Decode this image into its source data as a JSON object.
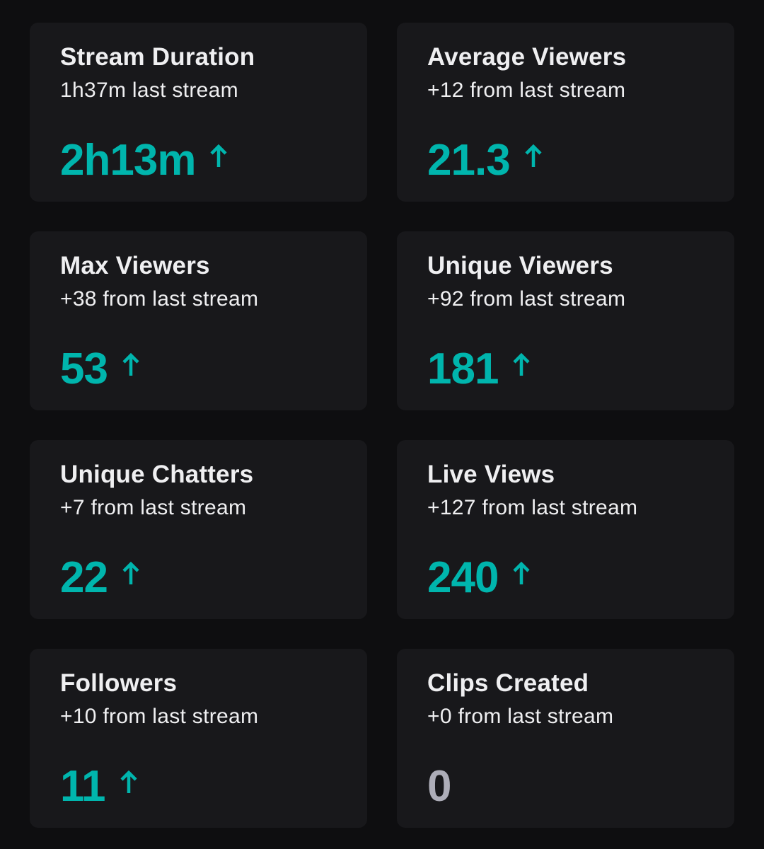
{
  "theme": {
    "accent": "#00b5ad",
    "neutral": "#adadb8",
    "card_bg": "#18181b",
    "page_bg": "#0e0e10"
  },
  "stats": [
    {
      "title": "Stream Duration",
      "subtitle": "1h37m last stream",
      "value": "2h13m",
      "trend": "up",
      "icon": "arrow-up-icon"
    },
    {
      "title": "Average Viewers",
      "subtitle": "+12 from last stream",
      "value": "21.3",
      "trend": "up",
      "icon": "arrow-up-icon"
    },
    {
      "title": "Max Viewers",
      "subtitle": "+38 from last stream",
      "value": "53",
      "trend": "up",
      "icon": "arrow-up-icon"
    },
    {
      "title": "Unique Viewers",
      "subtitle": "+92 from last stream",
      "value": "181",
      "trend": "up",
      "icon": "arrow-up-icon"
    },
    {
      "title": "Unique Chatters",
      "subtitle": "+7 from last stream",
      "value": "22",
      "trend": "up",
      "icon": "arrow-up-icon"
    },
    {
      "title": "Live Views",
      "subtitle": "+127 from last stream",
      "value": "240",
      "trend": "up",
      "icon": "arrow-up-icon"
    },
    {
      "title": "Followers",
      "subtitle": "+10 from last stream",
      "value": "11",
      "trend": "up",
      "icon": "arrow-up-icon"
    },
    {
      "title": "Clips Created",
      "subtitle": "+0 from last stream",
      "value": "0",
      "trend": "flat",
      "icon": ""
    }
  ]
}
